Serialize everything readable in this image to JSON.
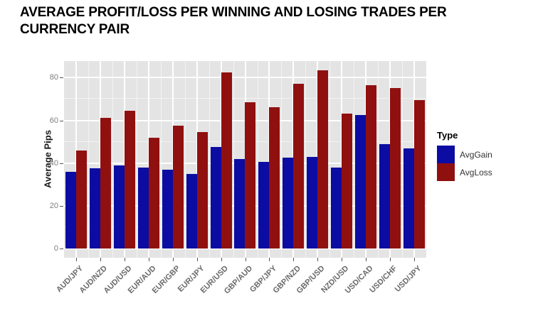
{
  "page": {
    "title": "AVERAGE PROFIT/LOSS PER WINNING AND LOSING TRADES PER CURRENCY PAIR"
  },
  "chart_data": {
    "type": "bar",
    "title": "AVERAGE PROFIT/LOSS PER WINNING AND LOSING TRADES PER CURRENCY PAIR",
    "xlabel": "",
    "ylabel": "Average Pips",
    "categories": [
      "AUD/JPY",
      "AUD/NZD",
      "AUD/USD",
      "EUR/AUD",
      "EUR/GBP",
      "EUR/JPY",
      "EUR/USD",
      "GBP/AUD",
      "GBP/JPY",
      "GBP/NZD",
      "GBP/USD",
      "NZD/USD",
      "USD/CAD",
      "USD/CHF",
      "USD/JPY"
    ],
    "series": [
      {
        "name": "AvgGain",
        "color": "#0c0ca3",
        "values": [
          36,
          37.5,
          39,
          38,
          37,
          35,
          47.5,
          42,
          40.5,
          42.5,
          43,
          38,
          62.5,
          49,
          47
        ]
      },
      {
        "name": "AvgLoss",
        "color": "#901010",
        "values": [
          46,
          61,
          64.5,
          52,
          57.5,
          54.5,
          82.5,
          68.5,
          66,
          77,
          83.5,
          63,
          76.5,
          75,
          69.5
        ]
      }
    ],
    "yticks": [
      0,
      20,
      40,
      60,
      80
    ],
    "ylim": [
      0,
      83.5
    ],
    "legend": {
      "title": "Type",
      "position": "right"
    },
    "grid": "major and minor, white on gray panel",
    "panel_bg": "#e4e4e4",
    "gridline_major_color": "#ffffff",
    "gridline_minor_color": "#ffffff",
    "axis_text_color": "#7d7d7d"
  }
}
